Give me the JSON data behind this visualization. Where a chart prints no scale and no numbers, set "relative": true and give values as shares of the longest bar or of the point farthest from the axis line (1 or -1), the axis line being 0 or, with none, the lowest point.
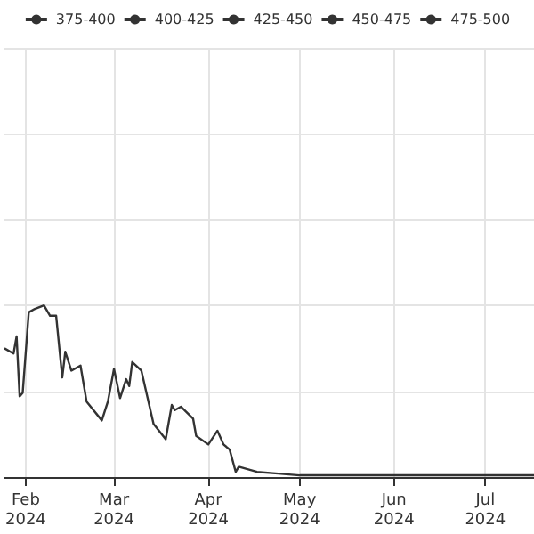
{
  "chart_data": {
    "type": "line",
    "relative": true,
    "grid": true,
    "legend": "top",
    "xlim": [
      "2024-01-25",
      "2024-07-17"
    ],
    "xticks": [
      {
        "value": "2024-02-01",
        "label": "Feb\n2024"
      },
      {
        "value": "2024-03-01",
        "label": "Mar\n2024"
      },
      {
        "value": "2024-04-01",
        "label": "Apr\n2024"
      },
      {
        "value": "2024-05-01",
        "label": "May\n2024"
      },
      {
        "value": "2024-06-01",
        "label": "Jun\n2024"
      },
      {
        "value": "2024-07-01",
        "label": "Jul\n2024"
      }
    ],
    "x": [
      "2024-01-25",
      "2024-01-28",
      "2024-01-29",
      "2024-01-30",
      "2024-01-31",
      "2024-02-02",
      "2024-02-04",
      "2024-02-07",
      "2024-02-09",
      "2024-02-11",
      "2024-02-13",
      "2024-02-14",
      "2024-02-16",
      "2024-02-19",
      "2024-02-21",
      "2024-02-26",
      "2024-02-28",
      "2024-03-01",
      "2024-03-03",
      "2024-03-05",
      "2024-03-06",
      "2024-03-07",
      "2024-03-10",
      "2024-03-14",
      "2024-03-18",
      "2024-03-20",
      "2024-03-21",
      "2024-03-23",
      "2024-03-27",
      "2024-03-28",
      "2024-04-01",
      "2024-04-04",
      "2024-04-06",
      "2024-04-08",
      "2024-04-10",
      "2024-04-11",
      "2024-04-17",
      "2024-04-24",
      "2024-05-01",
      "2024-05-20",
      "2024-06-07",
      "2024-07-17"
    ],
    "series": [
      {
        "name": "375-400",
        "color": "#333333",
        "values": [
          null,
          null,
          null,
          null,
          null,
          null,
          null,
          null,
          null,
          null,
          null,
          null,
          null,
          null,
          null,
          null,
          null,
          null,
          null,
          null,
          null,
          null,
          null,
          null,
          null,
          null,
          null,
          null,
          null,
          null,
          null,
          null,
          null,
          null,
          null,
          null,
          null,
          null,
          null,
          null,
          null,
          null
        ]
      },
      {
        "name": "400-425",
        "color": "#333333",
        "values": [
          null,
          null,
          null,
          null,
          null,
          null,
          null,
          null,
          null,
          null,
          null,
          null,
          null,
          null,
          null,
          null,
          null,
          null,
          null,
          null,
          null,
          null,
          null,
          null,
          null,
          null,
          null,
          null,
          null,
          null,
          null,
          null,
          null,
          null,
          null,
          null,
          null,
          null,
          null,
          null,
          null,
          null
        ]
      },
      {
        "name": "425-450",
        "color": "#333333",
        "values": [
          0.75,
          0.72,
          0.82,
          0.47,
          0.49,
          0.96,
          0.98,
          1,
          0.94,
          0.94,
          0.58,
          0.73,
          0.62,
          0.65,
          0.44,
          0.33,
          0.44,
          0.63,
          0.46,
          0.57,
          0.53,
          0.67,
          0.62,
          0.31,
          0.22,
          0.42,
          0.39,
          0.41,
          0.34,
          0.24,
          0.19,
          0.27,
          0.19,
          0.16,
          0.03,
          0.06,
          0.03,
          0.02,
          0.01,
          0.01,
          0.01,
          0.01
        ]
      },
      {
        "name": "450-475",
        "color": "#333333",
        "values": [
          null,
          null,
          null,
          null,
          null,
          null,
          null,
          null,
          null,
          null,
          null,
          null,
          null,
          null,
          null,
          null,
          null,
          null,
          null,
          null,
          null,
          null,
          null,
          null,
          null,
          null,
          null,
          null,
          null,
          null,
          null,
          null,
          null,
          null,
          null,
          null,
          null,
          null,
          null,
          null,
          null,
          null
        ]
      },
      {
        "name": "475-500",
        "color": "#333333",
        "values": [
          null,
          null,
          null,
          null,
          null,
          null,
          null,
          null,
          null,
          null,
          null,
          null,
          null,
          null,
          null,
          null,
          null,
          null,
          null,
          null,
          null,
          null,
          null,
          null,
          null,
          null,
          null,
          null,
          null,
          null,
          null,
          null,
          null,
          null,
          null,
          null,
          null,
          null,
          null,
          null,
          null,
          null
        ]
      }
    ]
  }
}
